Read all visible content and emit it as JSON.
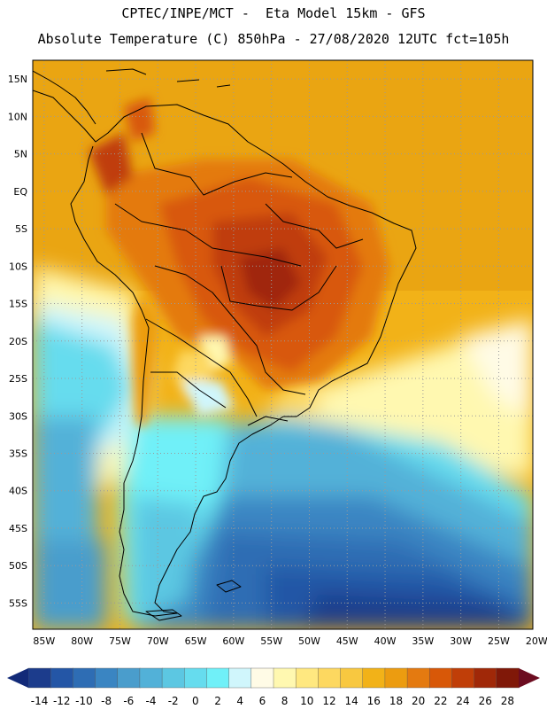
{
  "header": {
    "line1": "CPTEC/INPE/MCT -  Eta Model 15km - GFS",
    "line2": "Absolute Temperature (C) 850hPa - 27/08/2020 12UTC fct=105h"
  },
  "axes": {
    "lat_labels": [
      "15N",
      "10N",
      "5N",
      "EQ",
      "5S",
      "10S",
      "15S",
      "20S",
      "25S",
      "30S",
      "35S",
      "40S",
      "45S",
      "50S",
      "55S"
    ],
    "lon_labels": [
      "85W",
      "80W",
      "75W",
      "70W",
      "65W",
      "60W",
      "55W",
      "50W",
      "45W",
      "40W",
      "35W",
      "30W",
      "25W",
      "20W"
    ],
    "lat_range": [
      17.5,
      -58.5
    ],
    "lon_range": [
      -86.5,
      -20.5
    ],
    "grid": "dotted"
  },
  "colorbar": {
    "labels": [
      "-14",
      "-12",
      "-10",
      "-8",
      "-6",
      "-4",
      "-2",
      "0",
      "2",
      "4",
      "6",
      "8",
      "10",
      "12",
      "14",
      "16",
      "18",
      "20",
      "22",
      "24",
      "26",
      "28"
    ],
    "colors": [
      "#1c3c8c",
      "#2456a6",
      "#2e6db4",
      "#3a85c2",
      "#4a9dcc",
      "#52b1d8",
      "#5cc7e2",
      "#66dcee",
      "#70f0f8",
      "#d0f6fc",
      "#fffbe6",
      "#fff8b0",
      "#ffe880",
      "#fdd860",
      "#f8c840",
      "#f2b218",
      "#ec9c10",
      "#e47a10",
      "#d85808",
      "#c03e08",
      "#a02808",
      "#801808"
    ],
    "under_color": "#122a78",
    "over_color": "#6c0c20"
  },
  "colors": {
    "coast": "#000000",
    "grid": "#9a9a9a"
  }
}
